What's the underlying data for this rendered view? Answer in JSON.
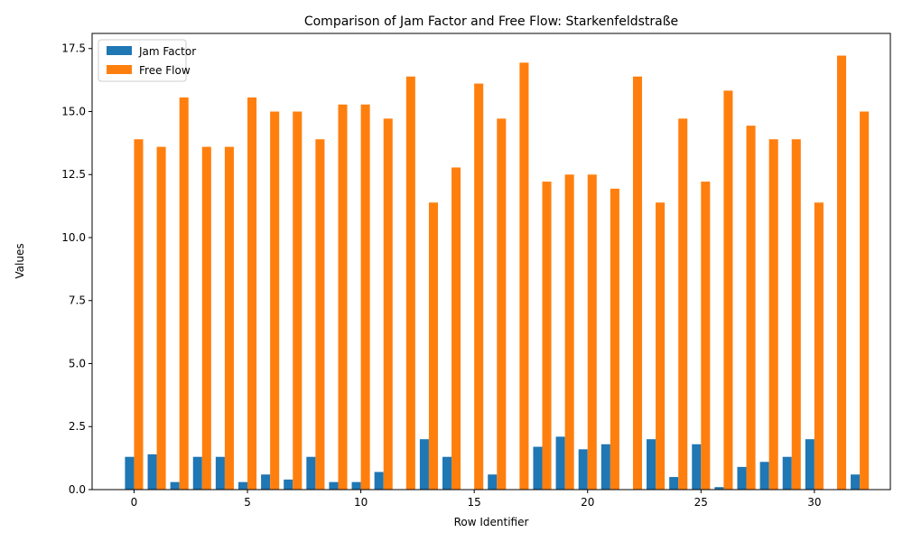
{
  "chart_data": {
    "type": "bar",
    "title": "Comparison of Jam Factor and Free Flow: Starkenfeldstraße",
    "xlabel": "Row Identifier",
    "ylabel": "Values",
    "x": [
      0,
      1,
      2,
      3,
      4,
      5,
      6,
      7,
      8,
      9,
      10,
      11,
      12,
      13,
      14,
      15,
      16,
      17,
      18,
      19,
      20,
      21,
      22,
      23,
      24,
      25,
      26,
      27,
      28,
      29,
      30,
      31,
      32
    ],
    "xticks": [
      0,
      5,
      10,
      15,
      20,
      25,
      30
    ],
    "yticks": [
      "0.0",
      "2.5",
      "5.0",
      "7.5",
      "10.0",
      "12.5",
      "15.0",
      "17.5"
    ],
    "ylim": [
      0,
      18.1
    ],
    "xlim": [
      -1.85,
      33.35
    ],
    "legend_position": "upper-left",
    "grid": false,
    "series": [
      {
        "name": "Jam Factor",
        "color": "#1f77b4",
        "values": [
          1.3,
          1.4,
          0.3,
          1.3,
          1.3,
          0.3,
          0.6,
          0.4,
          1.3,
          0.3,
          0.3,
          0.7,
          0.0,
          2.0,
          1.3,
          0.0,
          0.6,
          0.0,
          1.7,
          2.1,
          1.6,
          1.8,
          0.0,
          2.0,
          0.5,
          1.8,
          0.1,
          0.9,
          1.1,
          1.3,
          2.0,
          0.0,
          0.6
        ]
      },
      {
        "name": "Free Flow",
        "color": "#ff7f0e",
        "values": [
          13.9,
          13.6,
          15.56,
          13.6,
          13.6,
          15.56,
          15.0,
          15.0,
          13.9,
          15.28,
          15.28,
          14.72,
          16.39,
          11.39,
          12.78,
          16.11,
          14.72,
          16.94,
          12.22,
          12.5,
          12.5,
          11.94,
          16.39,
          11.39,
          14.72,
          12.22,
          15.83,
          14.44,
          13.9,
          13.9,
          11.39,
          17.22,
          15.0
        ]
      }
    ]
  }
}
